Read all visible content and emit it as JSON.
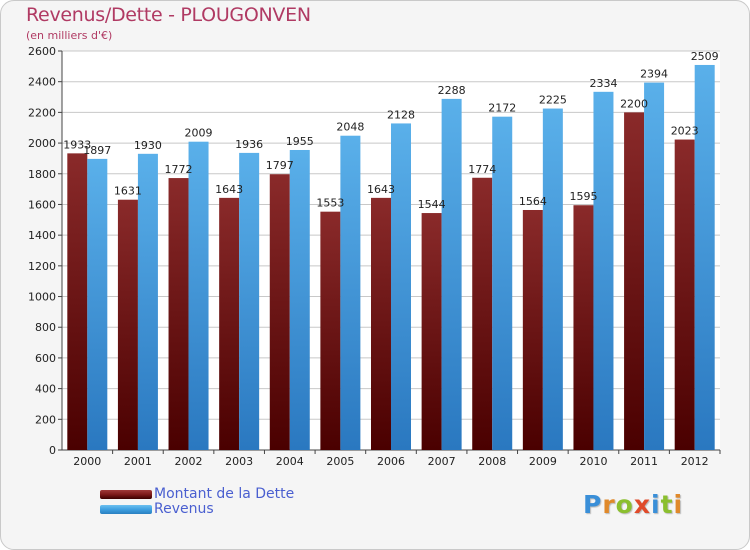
{
  "title": "Revenus/Dette - PLOUGONVEN",
  "subtitle": "(en milliers d'€)",
  "logo": {
    "letters": [
      "P",
      "r",
      "o",
      "x",
      "i",
      "t",
      "i"
    ],
    "colors": [
      "#3a8fd8",
      "#e0892a",
      "#8bbf2f",
      "#e04a2a",
      "#3a8fd8",
      "#8bbf2f",
      "#e0892a"
    ]
  },
  "colors": {
    "dette": "#7d1a1a",
    "revenus": "#3e9fe0"
  },
  "chart_data": {
    "type": "bar",
    "title": "Revenus/Dette - PLOUGONVEN",
    "ylabel": "(en milliers d'€)",
    "xlabel": "",
    "ylim": [
      0,
      2600
    ],
    "yticks": [
      0,
      200,
      400,
      600,
      800,
      1000,
      1200,
      1400,
      1600,
      1800,
      2000,
      2200,
      2400,
      2600
    ],
    "grid": true,
    "legend": "bottom-left",
    "categories": [
      "2000",
      "2001",
      "2002",
      "2003",
      "2004",
      "2005",
      "2006",
      "2007",
      "2008",
      "2009",
      "2010",
      "2011",
      "2012"
    ],
    "series": [
      {
        "name": "Montant de la Dette",
        "values": [
          1933,
          1631,
          1772,
          1643,
          1797,
          1553,
          1643,
          1544,
          1774,
          1564,
          1595,
          2200,
          2023
        ]
      },
      {
        "name": "Revenus",
        "values": [
          1897,
          1930,
          2009,
          1936,
          1955,
          2048,
          2128,
          2288,
          2172,
          2225,
          2334,
          2394,
          2509
        ]
      }
    ]
  }
}
